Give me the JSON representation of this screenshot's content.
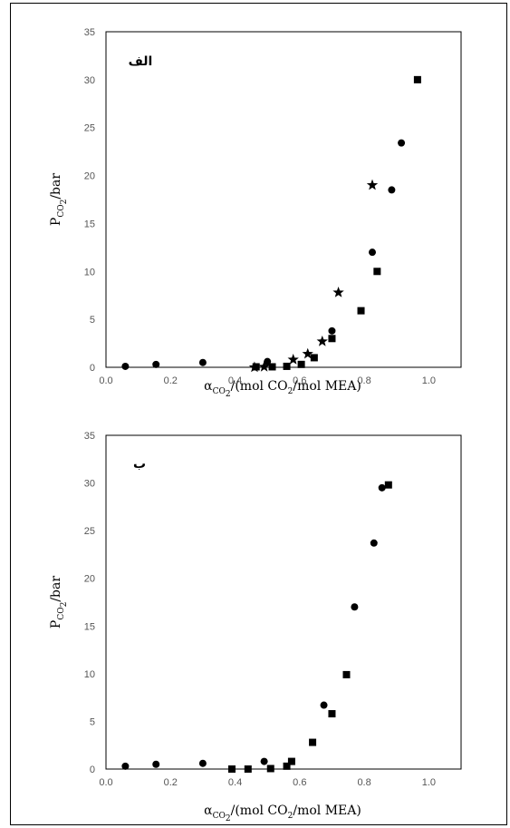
{
  "chart_data": [
    {
      "type": "scatter",
      "panel_label": "الف",
      "xlabel": {
        "alpha": "α",
        "sub1": "CO",
        "sub2": "2",
        "rest": "/(mol CO",
        "rest_sub": "2",
        "rest_end": "/mol MEA)"
      },
      "ylabel": {
        "main": "P",
        "sub1": "CO",
        "sub2": "2",
        "rest": "/bar"
      },
      "xlim": [
        0,
        1.1
      ],
      "ylim": [
        0,
        35
      ],
      "xticks": [
        "0.0",
        "0.2",
        "0.4",
        "0.6",
        "0.8",
        "1.0"
      ],
      "yticks": [
        "0",
        "5",
        "10",
        "15",
        "20",
        "25",
        "30",
        "35"
      ],
      "series": [
        {
          "marker": "circle",
          "points": [
            [
              0.06,
              0.1
            ],
            [
              0.155,
              0.3
            ],
            [
              0.3,
              0.5
            ],
            [
              0.5,
              0.6
            ],
            [
              0.7,
              3.8
            ],
            [
              0.825,
              12.0
            ],
            [
              0.885,
              18.5
            ],
            [
              0.915,
              23.4
            ]
          ]
        },
        {
          "marker": "square",
          "points": [
            [
              0.465,
              0.05
            ],
            [
              0.515,
              0.05
            ],
            [
              0.56,
              0.1
            ],
            [
              0.605,
              0.3
            ],
            [
              0.645,
              1.0
            ],
            [
              0.7,
              3.0
            ],
            [
              0.79,
              5.9
            ],
            [
              0.84,
              10.0
            ],
            [
              0.965,
              30.0
            ]
          ]
        },
        {
          "marker": "star",
          "points": [
            [
              0.46,
              0.0
            ],
            [
              0.49,
              0.05
            ],
            [
              0.58,
              0.8
            ],
            [
              0.625,
              1.4
            ],
            [
              0.67,
              2.7
            ],
            [
              0.72,
              7.8
            ],
            [
              0.825,
              19.0
            ]
          ]
        }
      ]
    },
    {
      "type": "scatter",
      "panel_label": "ب",
      "xlabel": {
        "alpha": "α",
        "sub1": "CO",
        "sub2": "2",
        "rest": "/(mol CO",
        "rest_sub": "2",
        "rest_end": "/mol MEA)"
      },
      "ylabel": {
        "main": "P",
        "sub1": "CO",
        "sub2": "2",
        "rest": "/bar"
      },
      "xlim": [
        0,
        1.1
      ],
      "ylim": [
        0,
        35
      ],
      "xticks": [
        "0.0",
        "0.2",
        "0.4",
        "0.6",
        "0.8",
        "1.0"
      ],
      "yticks": [
        "0",
        "5",
        "10",
        "15",
        "20",
        "25",
        "30",
        "35"
      ],
      "series": [
        {
          "marker": "circle",
          "points": [
            [
              0.06,
              0.3
            ],
            [
              0.155,
              0.5
            ],
            [
              0.3,
              0.6
            ],
            [
              0.49,
              0.8
            ],
            [
              0.675,
              6.7
            ],
            [
              0.77,
              17.0
            ],
            [
              0.83,
              23.7
            ],
            [
              0.855,
              29.5
            ]
          ]
        },
        {
          "marker": "square",
          "points": [
            [
              0.39,
              0.0
            ],
            [
              0.44,
              0.0
            ],
            [
              0.51,
              0.05
            ],
            [
              0.56,
              0.3
            ],
            [
              0.575,
              0.8
            ],
            [
              0.64,
              2.8
            ],
            [
              0.7,
              5.8
            ],
            [
              0.745,
              9.9
            ],
            [
              0.875,
              29.8
            ]
          ]
        }
      ]
    }
  ]
}
